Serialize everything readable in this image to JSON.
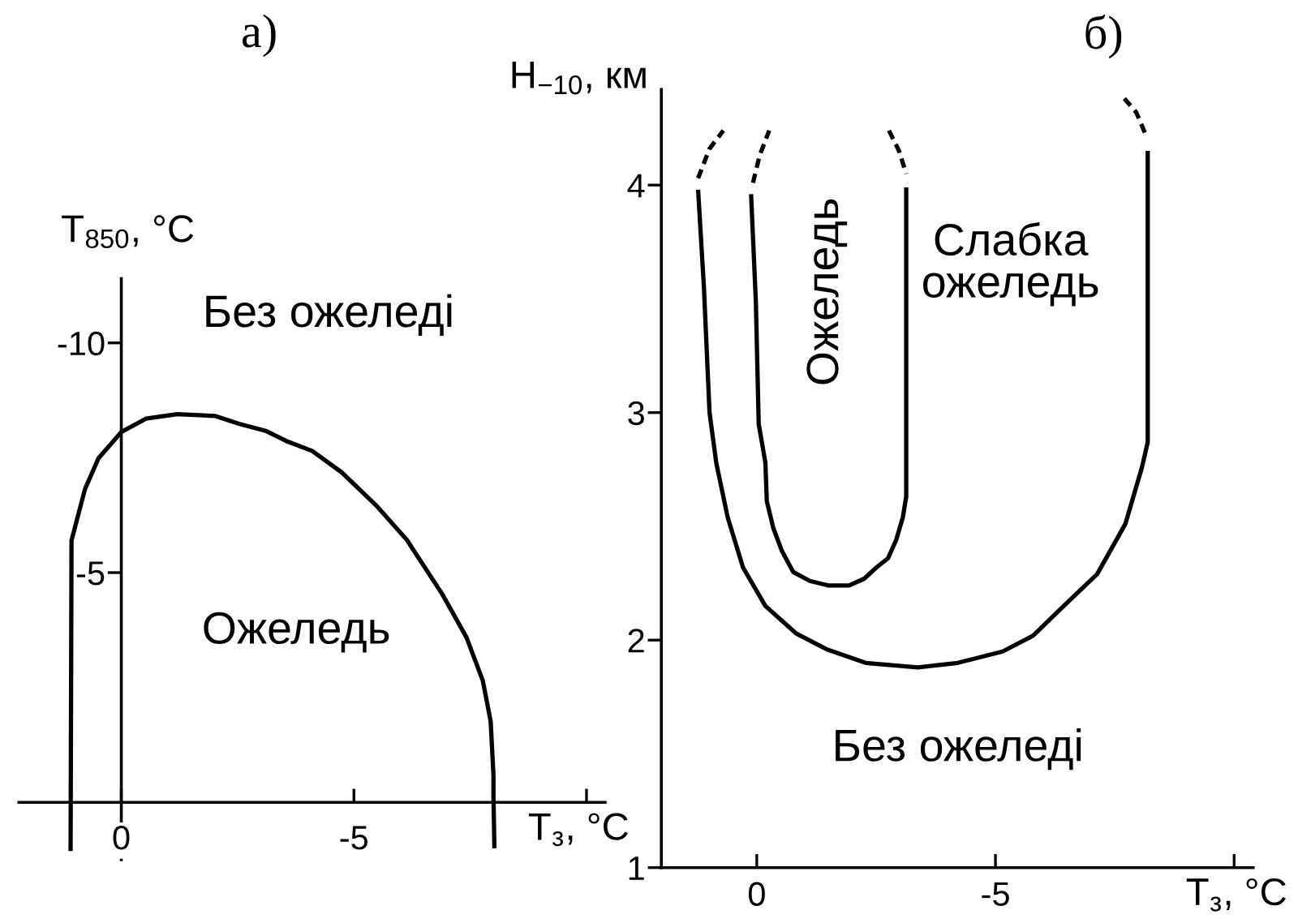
{
  "chart_data": [
    {
      "type": "line",
      "title": "а)",
      "xlabel": "T$_{з}$, °C",
      "ylabel": "T$_{850}$, °C",
      "line_style": "solid",
      "xlim": [
        2.2,
        -10.4
      ],
      "ylim": [
        1.25,
        -11.4
      ],
      "xticks": [
        0,
        -5,
        {
          "value": -10,
          "label": null
        }
      ],
      "yticks": [
        -5,
        -10
      ],
      "series": [
        {
          "color": "#000000",
          "x": [
            1.09,
            1.07,
            0.78,
            0.49,
            0.0,
            -0.53,
            -1.2,
            -2.01,
            -2.53,
            -3.12,
            -3.58,
            -4.1,
            -4.74,
            -5.5,
            -6.14,
            -6.9,
            -7.42,
            -7.77,
            -7.94,
            -8.0,
            -8.0,
            -8.02
          ],
          "values": [
            1.06,
            -5.7,
            -6.82,
            -7.49,
            -8.06,
            -8.35,
            -8.45,
            -8.41,
            -8.24,
            -8.08,
            -7.85,
            -7.65,
            -7.18,
            -6.44,
            -5.71,
            -4.53,
            -3.59,
            -2.65,
            -1.76,
            -0.59,
            -0.12,
            1.0
          ]
        }
      ],
      "annotations": [
        "Без ожеледі",
        "Ожеледь"
      ]
    },
    {
      "type": "line",
      "title": "б)",
      "xlabel": "T$_{з}$, °C",
      "ylabel": "H$_{−10}$, км",
      "line_style": "solid",
      "xlim": [
        2.0,
        -10.4
      ],
      "ylim": [
        1,
        4.42
      ],
      "xticks": [
        0,
        -5,
        {
          "value": -10,
          "label": null
        }
      ],
      "yticks": [
        1,
        2,
        3,
        4
      ],
      "series": [
        {
          "color": "#000000",
          "x": [
            1.23,
            1.11,
            0.99,
            0.85,
            0.61,
            0.29,
            -0.18,
            -0.82,
            -1.46,
            -2.28,
            -3.37,
            -4.21,
            -5.15,
            -5.79,
            -6.43,
            -7.13,
            -7.72,
            -8.07,
            -8.19,
            -8.19
          ],
          "values": [
            3.98,
            3.56,
            3.0,
            2.78,
            2.54,
            2.32,
            2.15,
            2.03,
            1.96,
            1.9,
            1.88,
            1.9,
            1.95,
            2.02,
            2.15,
            2.29,
            2.51,
            2.76,
            2.87,
            4.15
          ]
        },
        {
          "color": "#000000",
          "x": [
            0.12,
            0.02,
            -0.04,
            -0.18,
            -0.21,
            -0.35,
            -0.53,
            -0.76,
            -1.11,
            -1.5,
            -1.93,
            -2.25,
            -2.51,
            -2.75,
            -2.92,
            -3.06,
            -3.13,
            -3.13
          ],
          "values": [
            3.96,
            3.49,
            2.95,
            2.78,
            2.61,
            2.49,
            2.39,
            2.3,
            2.26,
            2.24,
            2.24,
            2.27,
            2.32,
            2.36,
            2.44,
            2.54,
            2.63,
            3.99
          ]
        },
        {
          "color": "#000000",
          "line_style": "dashed",
          "x": [
            1.23,
            0.99,
            0.7
          ],
          "values": [
            4.03,
            4.16,
            4.24
          ]
        },
        {
          "color": "#000000",
          "line_style": "dashed",
          "x": [
            -7.7,
            -7.95,
            -8.13
          ],
          "values": [
            4.38,
            4.32,
            4.23
          ]
        },
        {
          "color": "#000000",
          "line_style": "dashed",
          "x": [
            0.08,
            -0.06,
            -0.26
          ],
          "values": [
            4.01,
            4.13,
            4.24
          ]
        },
        {
          "color": "#000000",
          "line_style": "dashed",
          "x": [
            -2.77,
            -2.98,
            -3.13
          ],
          "values": [
            4.24,
            4.15,
            4.05
          ]
        }
      ],
      "annotations": [
        "Ожеледь",
        "Слабка\nожеледь",
        "Без ожеледі"
      ]
    }
  ]
}
